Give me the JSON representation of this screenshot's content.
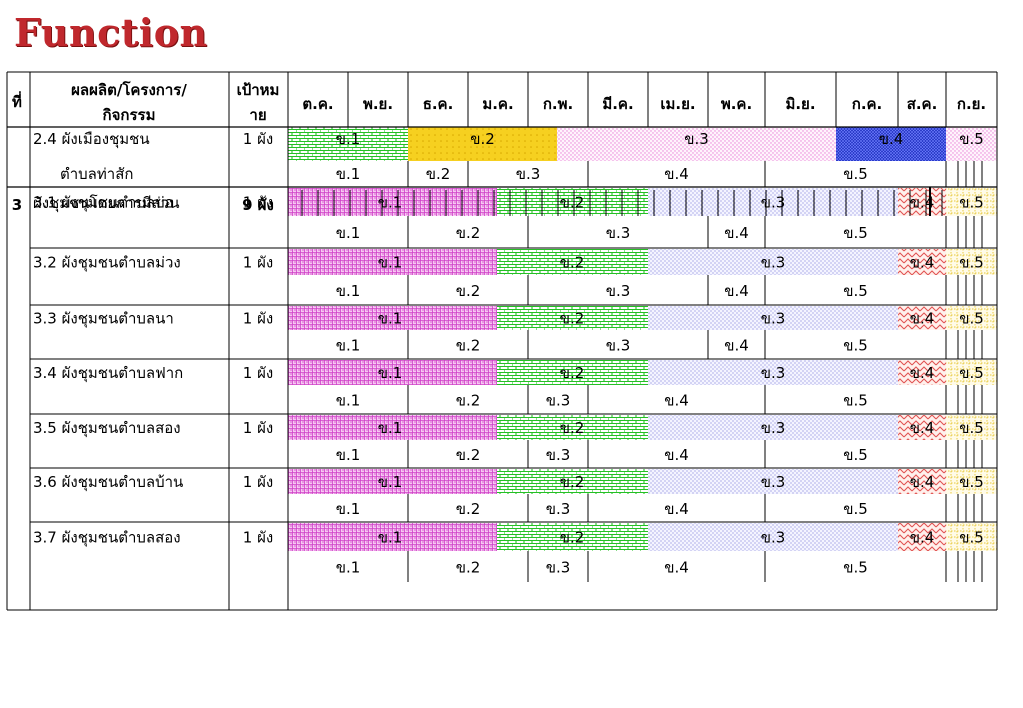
{
  "title": "Function",
  "columns": {
    "no": "ที่",
    "item_l1": "ผลผลิต/โครงการ/",
    "item_l2": "กิจกรรม",
    "target_l1": "เป้าหม",
    "target_l2": "าย",
    "months": [
      "ต.ค.",
      "พ.ย.",
      "ธ.ค.",
      "ม.ค.",
      "ก.พ.",
      "มี.ค.",
      "เม.ย.",
      "พ.ค.",
      "มิ.ย.",
      "ก.ค.",
      "ส.ค.",
      "ก.ย."
    ]
  },
  "colors": {
    "plan_pink": "#e070d8",
    "plan_green": "#25c025",
    "plan_yellow": "#f0c800",
    "plan_blue": "#9090e0",
    "plan_blue_dark": "#1020b0",
    "plan_red": "#e06060",
    "plan_light_pink": "#f0a8e8",
    "plan_gold": "#e0b800"
  },
  "rows": [
    {
      "no": "",
      "name": "2.4 ผังเมืองชุมชน",
      "name2": "ตำบลท่าสัก",
      "target": "1 ผัง",
      "plan": [
        "ข.1",
        "ข.2",
        "ข.3",
        "ข.4",
        "ข.5"
      ],
      "actual": [
        "ข.1",
        "ข.2",
        "ข.3",
        "ข.4",
        "ข.5"
      ]
    },
    {
      "no": "3",
      "name": "ผังชุมชนโดยการมีส่วน",
      "target": "9 ผัง"
    },
    {
      "name": "3.1 ผังชุมชนตำบลบ่อ",
      "target": "1  ผัง",
      "plan": [
        "ข.1",
        "ข.2",
        "ข.3",
        "ข.4",
        "ข.5"
      ],
      "actual": [
        "ข.1",
        "ข.2",
        "ข.3",
        "ข.4",
        "ข.5"
      ]
    },
    {
      "name": "3.2 ผังชุมชนตำบลม่วง",
      "target": "1  ผัง",
      "plan": [
        "ข.1",
        "ข.2",
        "ข.3",
        "ข.4",
        "ข.5"
      ],
      "actual": [
        "ข.1",
        "ข.2",
        "ข.3",
        "ข.4",
        "ข.5"
      ]
    },
    {
      "name": "3.3 ผังชุมชนตำบลนา",
      "target": "1  ผัง",
      "plan": [
        "ข.1",
        "ข.2",
        "ข.3",
        "ข.4",
        "ข.5"
      ],
      "actual": [
        "ข.1",
        "ข.2",
        "ข.3",
        "ข.4",
        "ข.5"
      ]
    },
    {
      "name": "3.4 ผังชุมชนตำบลฟาก",
      "target": "1  ผัง",
      "plan": [
        "ข.1",
        "ข.2",
        "ข.3",
        "ข.4",
        "ข.5"
      ],
      "actual": [
        "ข.1",
        "ข.2",
        "ข.3",
        "ข.4",
        "ข.5"
      ]
    },
    {
      "name": "3.5 ผังชุมชนตำบลสอง",
      "target": "1  ผัง",
      "plan": [
        "ข.1",
        "ข.2",
        "ข.3",
        "ข.4",
        "ข.5"
      ],
      "actual": [
        "ข.1",
        "ข.2",
        "ข.3",
        "ข.4",
        "ข.5"
      ]
    },
    {
      "name": "3.6 ผังชุมชนตำบลบ้าน",
      "target": "1  ผัง",
      "plan": [
        "ข.1",
        "ข.2",
        "ข.3",
        "ข.4",
        "ข.5"
      ],
      "actual": [
        "ข.1",
        "ข.2",
        "ข.3",
        "ข.4",
        "ข.5"
      ]
    },
    {
      "name": "3.7 ผังชุมชนตำบลสอง",
      "target": "1  ผัง",
      "plan": [
        "ข.1",
        "ข.2",
        "ข.3",
        "ข.4",
        "ข.5"
      ],
      "actual": [
        "ข.1",
        "ข.2",
        "ข.3",
        "ข.4",
        "ข.5"
      ]
    }
  ]
}
